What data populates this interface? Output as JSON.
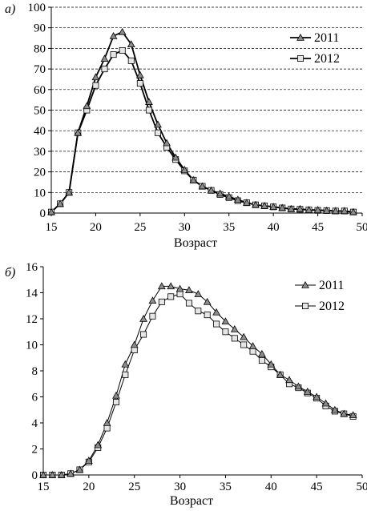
{
  "chart_data": [
    {
      "id": "a",
      "type": "line",
      "panel_label": "а)",
      "title": "",
      "xlabel": "Возраст",
      "ylabel": "",
      "xlim": [
        15,
        50
      ],
      "ylim": [
        0,
        100
      ],
      "xticks": [
        15,
        20,
        25,
        30,
        35,
        40,
        45,
        50
      ],
      "yticks": [
        0,
        10,
        20,
        30,
        40,
        50,
        60,
        70,
        80,
        90,
        100
      ],
      "grid": true,
      "legend": "right",
      "x": [
        15,
        16,
        17,
        18,
        19,
        20,
        21,
        22,
        23,
        24,
        25,
        26,
        27,
        28,
        29,
        30,
        31,
        32,
        33,
        34,
        35,
        36,
        37,
        38,
        39,
        40,
        41,
        42,
        43,
        44,
        45,
        46,
        47,
        48,
        49
      ],
      "series": [
        {
          "name": "2011",
          "marker": "triangle",
          "color": "#8c8c8c",
          "values": [
            0.5,
            4.5,
            10,
            39,
            52,
            66,
            75,
            86,
            88,
            82,
            67,
            54,
            43,
            34,
            27,
            21,
            16,
            13,
            11,
            9.5,
            8,
            6.5,
            5,
            4,
            3.5,
            3,
            2.5,
            2,
            2,
            1.5,
            1.5,
            1.2,
            1,
            1,
            0.5
          ]
        },
        {
          "name": "2012",
          "marker": "square",
          "color": "#e6e6e6",
          "values": [
            0.5,
            4.5,
            10,
            39,
            50,
            62,
            70,
            77,
            79,
            74,
            63,
            50,
            39,
            32,
            26,
            20.5,
            16,
            13,
            11,
            9,
            7.5,
            6,
            5,
            4,
            3.5,
            3,
            2.5,
            2,
            1.8,
            1.5,
            1.3,
            1.2,
            1,
            1,
            0.5
          ]
        }
      ]
    },
    {
      "id": "b",
      "type": "line",
      "panel_label": "б)",
      "title": "",
      "xlabel": "Возраст",
      "ylabel": "",
      "xlim": [
        15,
        50
      ],
      "ylim": [
        0,
        16
      ],
      "xticks": [
        15,
        20,
        25,
        30,
        35,
        40,
        45,
        50
      ],
      "yticks": [
        0,
        2,
        4,
        6,
        8,
        10,
        12,
        14,
        16
      ],
      "grid": false,
      "legend": "top-right",
      "x": [
        15,
        16,
        17,
        18,
        19,
        20,
        21,
        22,
        23,
        24,
        25,
        26,
        27,
        28,
        29,
        30,
        31,
        32,
        33,
        34,
        35,
        36,
        37,
        38,
        39,
        40,
        41,
        42,
        43,
        44,
        45,
        46,
        47,
        48,
        49
      ],
      "series": [
        {
          "name": "2011",
          "marker": "triangle",
          "color": "#8c8c8c",
          "values": [
            0,
            0,
            0,
            0.1,
            0.4,
            1.1,
            2.3,
            4.0,
            6.1,
            8.5,
            10.0,
            12.0,
            13.4,
            14.5,
            14.5,
            14.3,
            14.2,
            13.9,
            13.3,
            12.5,
            11.8,
            11.2,
            10.6,
            9.9,
            9.3,
            8.5,
            7.7,
            7.3,
            6.8,
            6.4,
            6.0,
            5.5,
            5.0,
            4.7,
            4.6
          ]
        },
        {
          "name": "2012",
          "marker": "square",
          "color": "#e6e6e6",
          "values": [
            0,
            0,
            0,
            0.1,
            0.4,
            1.0,
            2.1,
            3.6,
            5.6,
            7.7,
            9.6,
            10.8,
            12.2,
            13.3,
            13.7,
            13.9,
            13.2,
            12.6,
            12.3,
            11.6,
            11.0,
            10.5,
            10.0,
            9.5,
            8.8,
            8.3,
            7.7,
            7.0,
            6.7,
            6.3,
            5.9,
            5.3,
            4.9,
            4.7,
            4.5
          ]
        }
      ]
    }
  ]
}
